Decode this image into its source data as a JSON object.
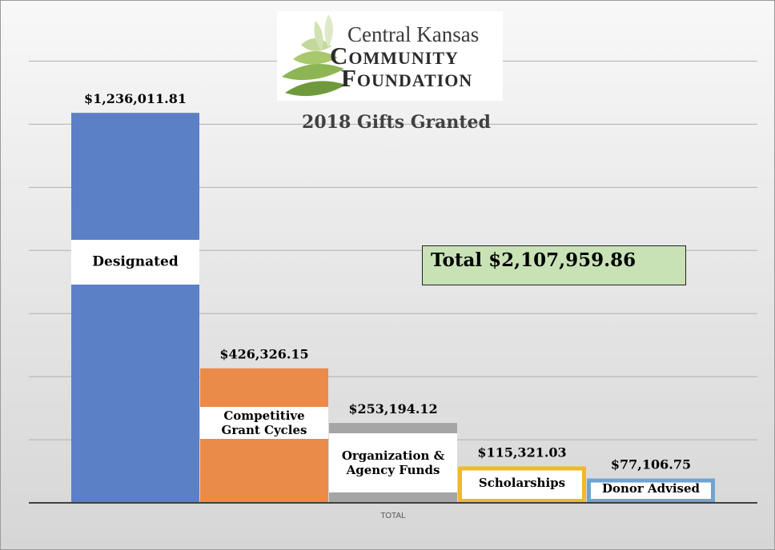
{
  "logo": {
    "line1": "Central Kansas",
    "line2": "Community",
    "line3": "Foundation"
  },
  "total_label": "Total $2,107,959.86",
  "colors": {
    "designated": "#5b80c6",
    "competitive": "#ea8b4a",
    "organization": "#a5a5a5",
    "scholarships": "#f1b928",
    "donor": "#6fa3d3",
    "gridline": "#b0b0b0",
    "axis": "#404040",
    "total_box": "#c8e2b6"
  },
  "chart_data": {
    "type": "bar",
    "title": "2018 Gifts Granted",
    "xlabel": "",
    "ylabel": "",
    "x_tick_label": "TOTAL",
    "ylim": [
      0,
      1500000
    ],
    "grid": true,
    "legend": "none",
    "series": [
      {
        "category": "Designated",
        "label_lines": [
          "Designated"
        ],
        "value": 1236011.81,
        "value_label": "$1,236,011.81",
        "color_key": "designated",
        "style": "fill"
      },
      {
        "category": "Competitive Grant Cycles",
        "label_lines": [
          "Competitive",
          "Grant Cycles"
        ],
        "value": 426326.15,
        "value_label": "$426,326.15",
        "color_key": "competitive",
        "style": "fill"
      },
      {
        "category": "Organization & Agency Funds",
        "label_lines": [
          "Organization &",
          "Agency Funds"
        ],
        "value": 253194.12,
        "value_label": "$253,194.12",
        "color_key": "organization",
        "style": "fill"
      },
      {
        "category": "Scholarships",
        "label_lines": [
          "Scholarships"
        ],
        "value": 115321.03,
        "value_label": "$115,321.03",
        "color_key": "scholarships",
        "style": "outline"
      },
      {
        "category": "Donor Advised",
        "label_lines": [
          "Donor Advised"
        ],
        "value": 77106.75,
        "value_label": "$77,106.75",
        "color_key": "donor",
        "style": "outline"
      }
    ]
  }
}
